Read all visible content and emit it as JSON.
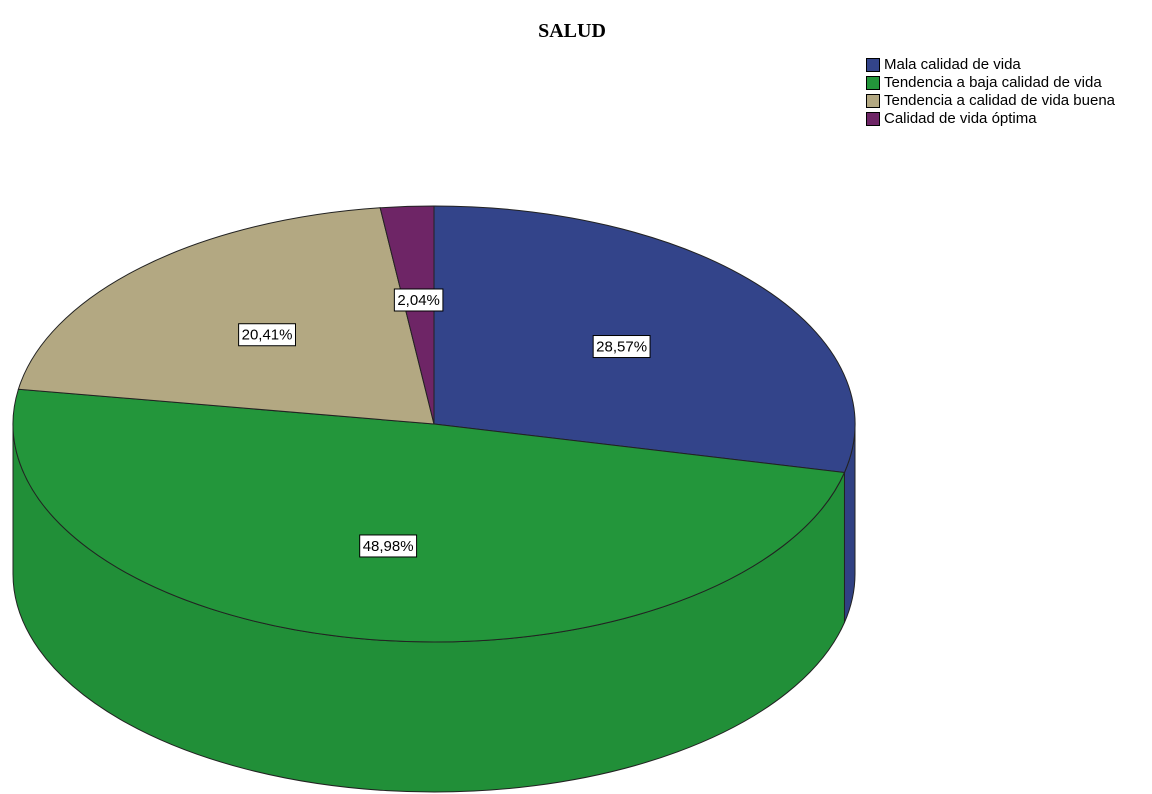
{
  "chart_data": {
    "type": "pie",
    "title": "SALUD",
    "categories": [
      "Mala calidad de vida",
      "Tendencia a baja calidad de vida",
      "Tendencia a calidad de vida buena",
      "Calidad de vida óptima"
    ],
    "values": [
      28.57,
      48.98,
      20.41,
      2.04
    ],
    "value_labels": [
      "28,57%",
      "48,98%",
      "20,41%",
      "2,04%"
    ],
    "colors": [
      "#33448a",
      "#23963b",
      "#b3a882",
      "#6e2566"
    ]
  }
}
